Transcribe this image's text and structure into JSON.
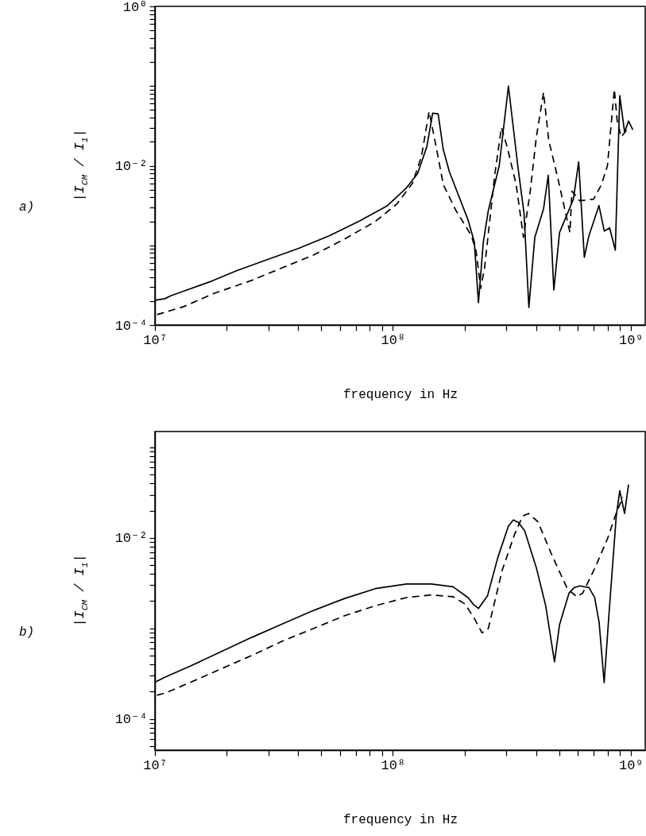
{
  "chart_data": [
    {
      "type": "line",
      "xlabel": "frequency in Hz",
      "ylabel": "|I$_{CM}$ / I$_{1}$|",
      "annotations": [
        "a)"
      ],
      "log": "xy",
      "grid": false,
      "xlim": [
        10000000.0,
        1150000000.0
      ],
      "ylim": [
        0.0001,
        1
      ],
      "xticks": [
        {
          "value": 10000000.0,
          "label": "10⁷"
        },
        {
          "value": 20000000.0,
          "label": null
        },
        {
          "value": 30000000.0,
          "label": null
        },
        {
          "value": 40000000.0,
          "label": null
        },
        {
          "value": 50000000.0,
          "label": null
        },
        {
          "value": 60000000.0,
          "label": null
        },
        {
          "value": 70000000.0,
          "label": null
        },
        {
          "value": 80000000.0,
          "label": null
        },
        {
          "value": 90000000.0,
          "label": null
        },
        {
          "value": 100000000.0,
          "label": "10⁸"
        },
        {
          "value": 200000000.0,
          "label": null
        },
        {
          "value": 300000000.0,
          "label": null
        },
        {
          "value": 400000000.0,
          "label": null
        },
        {
          "value": 500000000.0,
          "label": null
        },
        {
          "value": 600000000.0,
          "label": null
        },
        {
          "value": 700000000.0,
          "label": null
        },
        {
          "value": 800000000.0,
          "label": null
        },
        {
          "value": 900000000.0,
          "label": null
        },
        {
          "value": 1000000000.0,
          "label": "10⁹"
        }
      ],
      "yticks": [
        {
          "value": 0.0001,
          "label": "10⁻⁴"
        },
        {
          "value": 0.0002,
          "label": null
        },
        {
          "value": 0.0003,
          "label": null
        },
        {
          "value": 0.0004,
          "label": null
        },
        {
          "value": 0.0005,
          "label": null
        },
        {
          "value": 0.0006,
          "label": null
        },
        {
          "value": 0.0007,
          "label": null
        },
        {
          "value": 0.0008,
          "label": null
        },
        {
          "value": 0.0009,
          "label": null
        },
        {
          "value": 0.001,
          "label": null
        },
        {
          "value": 0.002,
          "label": null
        },
        {
          "value": 0.003,
          "label": null
        },
        {
          "value": 0.004,
          "label": null
        },
        {
          "value": 0.005,
          "label": null
        },
        {
          "value": 0.006,
          "label": null
        },
        {
          "value": 0.007,
          "label": null
        },
        {
          "value": 0.008,
          "label": null
        },
        {
          "value": 0.009,
          "label": null
        },
        {
          "value": 0.01,
          "label": "10⁻²"
        },
        {
          "value": 0.02,
          "label": null
        },
        {
          "value": 0.03,
          "label": null
        },
        {
          "value": 0.04,
          "label": null
        },
        {
          "value": 0.05,
          "label": null
        },
        {
          "value": 0.06,
          "label": null
        },
        {
          "value": 0.07,
          "label": null
        },
        {
          "value": 0.08,
          "label": null
        },
        {
          "value": 0.09,
          "label": null
        },
        {
          "value": 0.1,
          "label": null
        },
        {
          "value": 0.2,
          "label": null
        },
        {
          "value": 0.3,
          "label": null
        },
        {
          "value": 0.4,
          "label": null
        },
        {
          "value": 0.5,
          "label": null
        },
        {
          "value": 0.6,
          "label": null
        },
        {
          "value": 0.7,
          "label": null
        },
        {
          "value": 0.8,
          "label": null
        },
        {
          "value": 0.9,
          "label": null
        },
        {
          "value": 1,
          "label": "10⁰"
        }
      ],
      "series": [
        {
          "color": "#000000",
          "line_style": "solid",
          "x": [
            10000000.0,
            11000000.0,
            11700000.0,
            13600000.0,
            17300000.0,
            22000000.0,
            29600000.0,
            40000000.0,
            54000000.0,
            72800000.0,
            95000000.0,
            114000000.0,
            127000000.0,
            139000000.0,
            147000000.0,
            155000000.0,
            163000000.0,
            173000000.0,
            207000000.0,
            220000000.0,
            229000000.0,
            240000000.0,
            252000000.0,
            280000000.0,
            306000000.0,
            335000000.0,
            356000000.0,
            373000000.0,
            395000000.0,
            430000000.0,
            450000000.0,
            475000000.0,
            502000000.0,
            574000000.0,
            604000000.0,
            638000000.0,
            667000000.0,
            735000000.0,
            774000000.0,
            815000000.0,
            861000000.0,
            899000000.0,
            942000000.0,
            979000000.0,
            1020000000.0
          ],
          "values": [
            0.000204,
            0.000214,
            0.000234,
            0.000275,
            0.000355,
            0.000479,
            0.000661,
            0.000912,
            0.00132,
            0.00204,
            0.00316,
            0.00525,
            0.00794,
            0.0174,
            0.0457,
            0.0447,
            0.0158,
            0.00832,
            0.00209,
            0.0011,
            0.000191,
            0.0011,
            0.00275,
            0.01,
            0.1,
            0.01,
            0.00251,
            0.000166,
            0.00126,
            0.00288,
            0.00759,
            0.000275,
            0.00145,
            0.0038,
            0.0112,
            0.000708,
            0.00132,
            0.00316,
            0.00151,
            0.00166,
            0.000871,
            0.0759,
            0.0263,
            0.0363,
            0.0282
          ]
        },
        {
          "color": "#000000",
          "line_style": "dashed",
          "x": [
            10200000.0,
            13200000.0,
            17800000.0,
            25500000.0,
            34400000.0,
            46500000.0,
            62700000.0,
            84500000.0,
            104000000.0,
            121000000.0,
            132000000.0,
            142000000.0,
            152000000.0,
            163000000.0,
            184000000.0,
            214000000.0,
            224000000.0,
            234000000.0,
            243000000.0,
            268000000.0,
            286000000.0,
            302000000.0,
            330000000.0,
            354000000.0,
            378000000.0,
            401000000.0,
            430000000.0,
            452000000.0,
            494000000.0,
            555000000.0,
            566000000.0,
            610000000.0,
            698000000.0,
            752000000.0,
            798000000.0,
            853000000.0,
            877000000.0,
            912000000.0,
            979000000.0
          ],
          "values": [
            0.000135,
            0.00017,
            0.000251,
            0.000363,
            0.000525,
            0.000759,
            0.0012,
            0.002,
            0.00331,
            0.00603,
            0.0132,
            0.0479,
            0.0174,
            0.00575,
            0.00275,
            0.00132,
            0.000832,
            0.000288,
            0.000525,
            0.00759,
            0.0302,
            0.0174,
            0.00575,
            0.00126,
            0.00479,
            0.0229,
            0.0832,
            0.0209,
            0.00692,
            0.00145,
            0.00479,
            0.00363,
            0.0038,
            0.00575,
            0.01,
            0.0912,
            0.0363,
            0.0229,
            0.0302
          ]
        }
      ]
    },
    {
      "type": "line",
      "xlabel": "frequency in Hz",
      "ylabel": "|I$_{CM}$ / I$_{1}$|",
      "annotations": [
        "b)"
      ],
      "log": "xy",
      "grid": false,
      "xlim": [
        10000000.0,
        1150000000.0
      ],
      "ylim": [
        4.5e-05,
        0.15
      ],
      "xticks": [
        {
          "value": 10000000.0,
          "label": "10⁷"
        },
        {
          "value": 20000000.0,
          "label": null
        },
        {
          "value": 30000000.0,
          "label": null
        },
        {
          "value": 40000000.0,
          "label": null
        },
        {
          "value": 50000000.0,
          "label": null
        },
        {
          "value": 60000000.0,
          "label": null
        },
        {
          "value": 70000000.0,
          "label": null
        },
        {
          "value": 80000000.0,
          "label": null
        },
        {
          "value": 90000000.0,
          "label": null
        },
        {
          "value": 100000000.0,
          "label": "10⁸"
        },
        {
          "value": 200000000.0,
          "label": null
        },
        {
          "value": 300000000.0,
          "label": null
        },
        {
          "value": 400000000.0,
          "label": null
        },
        {
          "value": 500000000.0,
          "label": null
        },
        {
          "value": 600000000.0,
          "label": null
        },
        {
          "value": 700000000.0,
          "label": null
        },
        {
          "value": 800000000.0,
          "label": null
        },
        {
          "value": 900000000.0,
          "label": null
        },
        {
          "value": 1000000000.0,
          "label": "10⁹"
        }
      ],
      "yticks": [
        {
          "value": 5e-05,
          "label": null
        },
        {
          "value": 6e-05,
          "label": null
        },
        {
          "value": 7e-05,
          "label": null
        },
        {
          "value": 8e-05,
          "label": null
        },
        {
          "value": 9e-05,
          "label": null
        },
        {
          "value": 0.0001,
          "label": "10⁻⁴"
        },
        {
          "value": 0.0002,
          "label": null
        },
        {
          "value": 0.0003,
          "label": null
        },
        {
          "value": 0.0004,
          "label": null
        },
        {
          "value": 0.0005,
          "label": null
        },
        {
          "value": 0.0006,
          "label": null
        },
        {
          "value": 0.0007,
          "label": null
        },
        {
          "value": 0.0008,
          "label": null
        },
        {
          "value": 0.0009,
          "label": null
        },
        {
          "value": 0.001,
          "label": null
        },
        {
          "value": 0.002,
          "label": null
        },
        {
          "value": 0.003,
          "label": null
        },
        {
          "value": 0.004,
          "label": null
        },
        {
          "value": 0.005,
          "label": null
        },
        {
          "value": 0.006,
          "label": null
        },
        {
          "value": 0.007,
          "label": null
        },
        {
          "value": 0.008,
          "label": null
        },
        {
          "value": 0.009,
          "label": null
        },
        {
          "value": 0.01,
          "label": "10⁻²"
        },
        {
          "value": 0.02,
          "label": null
        },
        {
          "value": 0.03,
          "label": null
        },
        {
          "value": 0.04,
          "label": null
        },
        {
          "value": 0.05,
          "label": null
        },
        {
          "value": 0.06,
          "label": null
        },
        {
          "value": 0.07,
          "label": null
        },
        {
          "value": 0.08,
          "label": null
        },
        {
          "value": 0.09,
          "label": null
        },
        {
          "value": 0.1,
          "label": null
        }
      ],
      "series": [
        {
          "color": "#000000",
          "line_style": "solid",
          "x": [
            10000000.0,
            11000000.0,
            14000000.0,
            18900000.0,
            25500000.0,
            34400000.0,
            46500000.0,
            62700000.0,
            84500000.0,
            114000000.0,
            145000000.0,
            179000000.0,
            207000000.0,
            219000000.0,
            229000000.0,
            250000000.0,
            276000000.0,
            306000000.0,
            321000000.0,
            337000000.0,
            358000000.0,
            401000000.0,
            439000000.0,
            478000000.0,
            502000000.0,
            550000000.0,
            578000000.0,
            610000000.0,
            667000000.0,
            705000000.0,
            736000000.0,
            773000000.0,
            811000000.0,
            869000000.0,
            899000000.0,
            942000000.0,
            979000000.0
          ],
          "values": [
            0.000254,
            0.000288,
            0.00038,
            0.00055,
            0.000794,
            0.00112,
            0.00158,
            0.00214,
            0.00275,
            0.00309,
            0.00309,
            0.00288,
            0.00219,
            0.00182,
            0.00166,
            0.00229,
            0.00603,
            0.0135,
            0.0158,
            0.0148,
            0.012,
            0.00468,
            0.00178,
            0.000427,
            0.0011,
            0.00245,
            0.00282,
            0.00295,
            0.00282,
            0.00219,
            0.00117,
            0.000251,
            0.00151,
            0.0174,
            0.0331,
            0.0186,
            0.0389
          ]
        },
        {
          "color": "#000000",
          "line_style": "dashed",
          "x": [
            10200000.0,
            11200000.0,
            14000000.0,
            18900000.0,
            25500000.0,
            34400000.0,
            46500000.0,
            62700000.0,
            84500000.0,
            114000000.0,
            145000000.0,
            179000000.0,
            201000000.0,
            220000000.0,
            237000000.0,
            252000000.0,
            288000000.0,
            325000000.0,
            351000000.0,
            372000000.0,
            407000000.0,
            466000000.0,
            541000000.0,
            592000000.0,
            628000000.0,
            708000000.0,
            798000000.0,
            873000000.0,
            927000000.0
          ],
          "values": [
            0.000182,
            0.000195,
            0.000251,
            0.000355,
            0.000501,
            0.000724,
            0.001,
            0.00138,
            0.00178,
            0.00219,
            0.00234,
            0.00224,
            0.00186,
            0.00129,
            0.000891,
            0.001,
            0.00437,
            0.011,
            0.0174,
            0.0186,
            0.0151,
            0.00646,
            0.00275,
            0.00224,
            0.00245,
            0.00468,
            0.00977,
            0.0195,
            0.0282
          ]
        }
      ]
    }
  ]
}
